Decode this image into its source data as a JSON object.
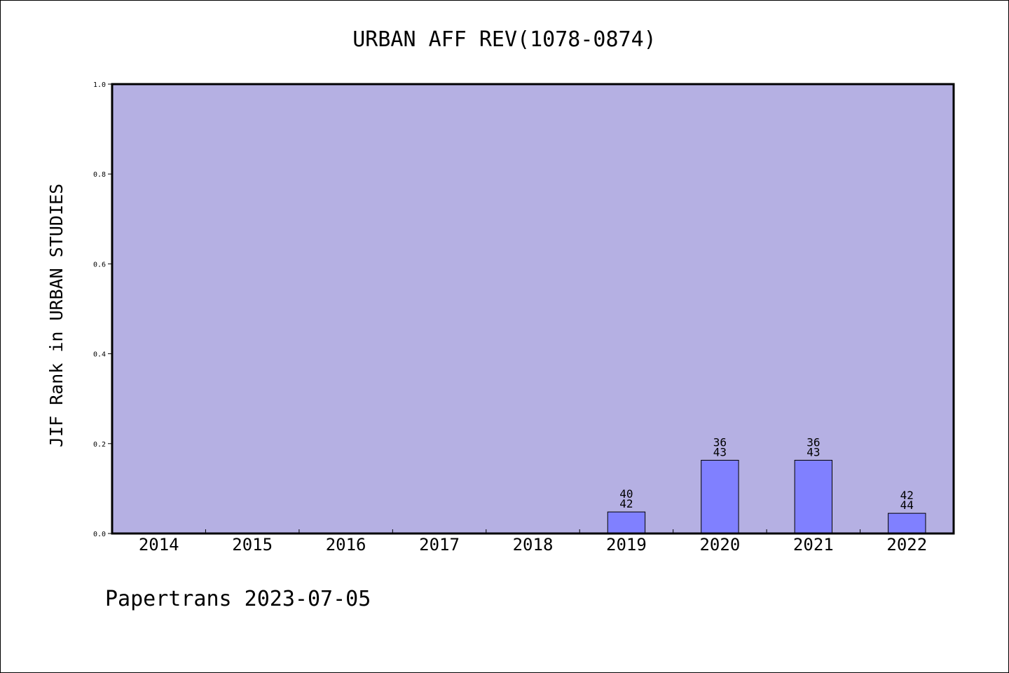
{
  "chart_data": {
    "type": "bar",
    "title": "URBAN AFF REV(1078-0874)",
    "ylabel": "JIF Rank in URBAN STUDIES",
    "xlabel": "",
    "ylim": [
      0,
      1.0
    ],
    "yticks": [
      "0.0",
      "0.2",
      "0.4",
      "0.6",
      "0.8",
      "1.0"
    ],
    "categories": [
      "2014",
      "2015",
      "2016",
      "2017",
      "2018",
      "2019",
      "2020",
      "2021",
      "2022"
    ],
    "values": [
      null,
      null,
      null,
      null,
      null,
      0.048,
      0.163,
      0.163,
      0.045
    ],
    "bar_labels": [
      null,
      null,
      null,
      null,
      null,
      {
        "rank": "40",
        "total": "42"
      },
      {
        "rank": "36",
        "total": "43"
      },
      {
        "rank": "36",
        "total": "43"
      },
      {
        "rank": "42",
        "total": "44"
      }
    ],
    "grid": false,
    "colors": {
      "plot_background": "#b5b0e3",
      "bar_fill": "#8080ff",
      "axis": "#000000"
    }
  },
  "footer": {
    "text": "Papertrans 2023-07-05"
  }
}
